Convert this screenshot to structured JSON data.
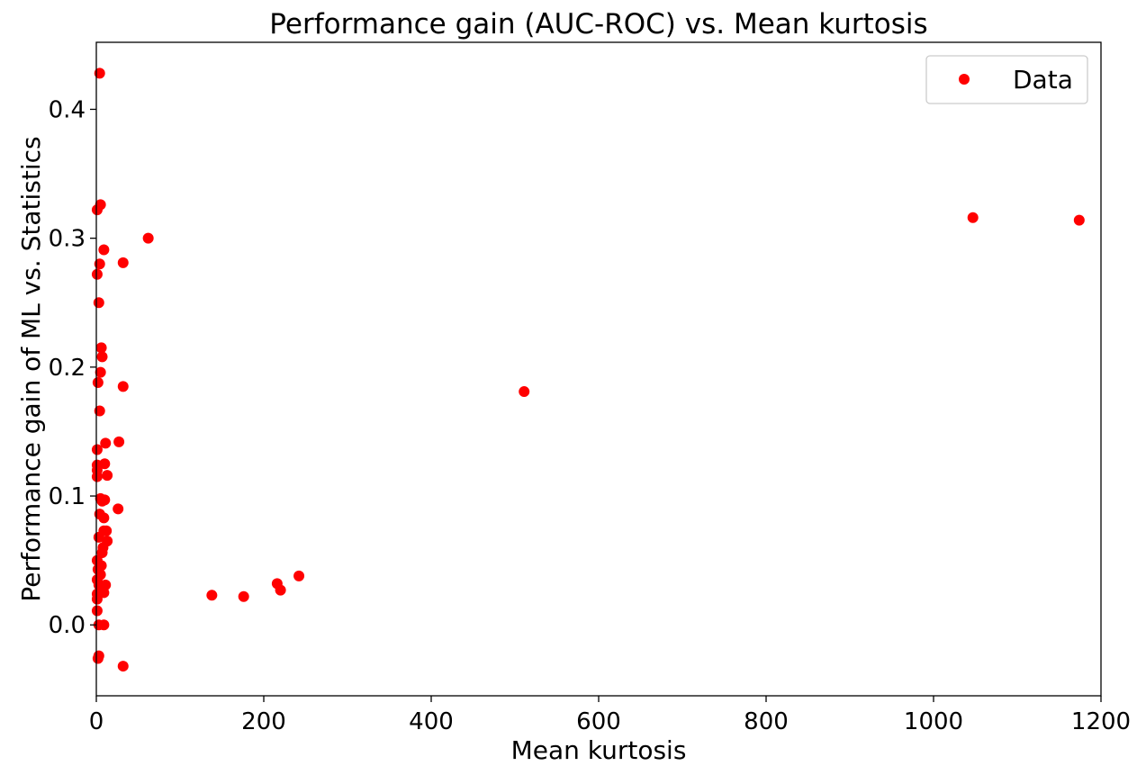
{
  "chart_data": {
    "type": "scatter",
    "title": "Performance gain (AUC-ROC) vs. Mean kurtosis",
    "xlabel": "Mean kurtosis",
    "ylabel": "Performance gain of ML vs. Statistics",
    "xlim": [
      0,
      1200
    ],
    "ylim": [
      -0.055,
      0.452
    ],
    "x_ticks": [
      0,
      200,
      400,
      600,
      800,
      1000,
      1200
    ],
    "x_tick_labels": [
      "0",
      "200",
      "400",
      "600",
      "800",
      "1000",
      "1200"
    ],
    "y_ticks": [
      0.0,
      0.1,
      0.2,
      0.3,
      0.4
    ],
    "y_tick_labels": [
      "0.0",
      "0.1",
      "0.2",
      "0.3",
      "0.4"
    ],
    "grid": false,
    "legend": {
      "position": "top-right",
      "entries": [
        "Data"
      ]
    },
    "color": "#ff0000",
    "series": [
      {
        "name": "Data",
        "points": [
          [
            4,
            0.428
          ],
          [
            5,
            0.326
          ],
          [
            1,
            0.322
          ],
          [
            9,
            0.291
          ],
          [
            62,
            0.3
          ],
          [
            4,
            0.28
          ],
          [
            32,
            0.281
          ],
          [
            1,
            0.272
          ],
          [
            3,
            0.25
          ],
          [
            6,
            0.215
          ],
          [
            7,
            0.208
          ],
          [
            5,
            0.196
          ],
          [
            2,
            0.188
          ],
          [
            32,
            0.185
          ],
          [
            4,
            0.166
          ],
          [
            11,
            0.141
          ],
          [
            27,
            0.142
          ],
          [
            1,
            0.136
          ],
          [
            10,
            0.125
          ],
          [
            1,
            0.124
          ],
          [
            13,
            0.116
          ],
          [
            1,
            0.115
          ],
          [
            1,
            0.12
          ],
          [
            10,
            0.097
          ],
          [
            5,
            0.098
          ],
          [
            7,
            0.096
          ],
          [
            26,
            0.09
          ],
          [
            4,
            0.086
          ],
          [
            9,
            0.083
          ],
          [
            12,
            0.073
          ],
          [
            9,
            0.073
          ],
          [
            3,
            0.068
          ],
          [
            13,
            0.065
          ],
          [
            8,
            0.06
          ],
          [
            7,
            0.056
          ],
          [
            1,
            0.05
          ],
          [
            6,
            0.046
          ],
          [
            2,
            0.043
          ],
          [
            5,
            0.039
          ],
          [
            1,
            0.035
          ],
          [
            3,
            0.031
          ],
          [
            11,
            0.031
          ],
          [
            9,
            0.025
          ],
          [
            1,
            0.024
          ],
          [
            1,
            0.02
          ],
          [
            1,
            0.011
          ],
          [
            3,
            0.0
          ],
          [
            9,
            0.0
          ],
          [
            3,
            -0.024
          ],
          [
            2,
            -0.026
          ],
          [
            32,
            -0.032
          ],
          [
            138,
            0.023
          ],
          [
            176,
            0.022
          ],
          [
            216,
            0.032
          ],
          [
            220,
            0.027
          ],
          [
            242,
            0.038
          ],
          [
            511,
            0.181
          ],
          [
            1047,
            0.316
          ],
          [
            1174,
            0.314
          ]
        ]
      }
    ]
  }
}
